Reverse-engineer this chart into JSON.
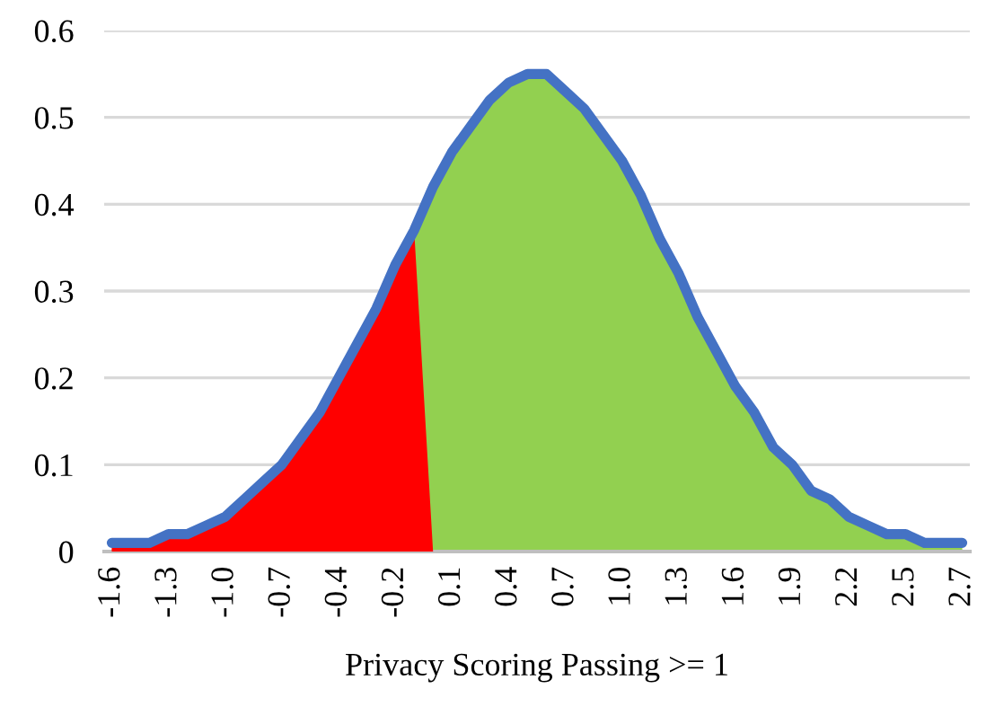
{
  "chart_data": {
    "type": "area",
    "xlabel": "Privacy Scoring Passing >= 1",
    "categories": [
      "-1.6",
      null,
      null,
      "-1.3",
      null,
      null,
      "-1.0",
      null,
      null,
      "-0.7",
      null,
      null,
      "-0.4",
      null,
      null,
      "-0.2",
      null,
      null,
      "0.1",
      null,
      null,
      "0.4",
      null,
      null,
      "0.7",
      null,
      null,
      "1.0",
      null,
      null,
      "1.3",
      null,
      null,
      "1.6",
      null,
      null,
      "1.9",
      null,
      null,
      "2.2",
      null,
      null,
      "2.5",
      null,
      null,
      "2.7"
    ],
    "series": [
      {
        "color": "#92d050",
        "values": [
          null,
          null,
          null,
          null,
          null,
          null,
          null,
          null,
          null,
          null,
          null,
          null,
          null,
          null,
          null,
          null,
          0.37,
          0.42,
          0.46,
          0.49,
          0.52,
          0.54,
          0.55,
          0.55,
          0.53,
          0.51,
          0.48,
          0.45,
          0.41,
          0.36,
          0.32,
          0.27,
          0.23,
          0.19,
          0.16,
          0.12,
          0.1,
          0.07,
          0.06,
          0.04,
          0.03,
          0.02,
          0.02,
          0.01,
          0.01,
          0.01
        ]
      },
      {
        "color": "#ff0000",
        "values": [
          0.01,
          0.01,
          0.01,
          0.02,
          0.02,
          0.03,
          0.04,
          0.06,
          0.08,
          0.1,
          0.13,
          0.16,
          0.2,
          0.24,
          0.28,
          0.33,
          0.37,
          0,
          null,
          null,
          null,
          null,
          null,
          null,
          null,
          null,
          null,
          null,
          null,
          null,
          null,
          null,
          null,
          null,
          null,
          null,
          null,
          null,
          null,
          null,
          null,
          null,
          null,
          null,
          null,
          null
        ]
      },
      {
        "type": "line",
        "color": "#4472c4",
        "values": [
          0.01,
          0.01,
          0.01,
          0.02,
          0.02,
          0.03,
          0.04,
          0.06,
          0.08,
          0.1,
          0.13,
          0.16,
          0.2,
          0.24,
          0.28,
          0.33,
          0.37,
          0.42,
          0.46,
          0.49,
          0.52,
          0.54,
          0.55,
          0.55,
          0.53,
          0.51,
          0.48,
          0.45,
          0.41,
          0.36,
          0.32,
          0.27,
          0.23,
          0.19,
          0.16,
          0.12,
          0.1,
          0.07,
          0.06,
          0.04,
          0.03,
          0.02,
          0.02,
          0.01,
          0.01,
          0.01
        ]
      }
    ],
    "ylim": [
      0,
      0.6
    ],
    "yticks": [
      0,
      0.1,
      0.2,
      0.3,
      0.4,
      0.5,
      0.6
    ],
    "grid": "y"
  }
}
